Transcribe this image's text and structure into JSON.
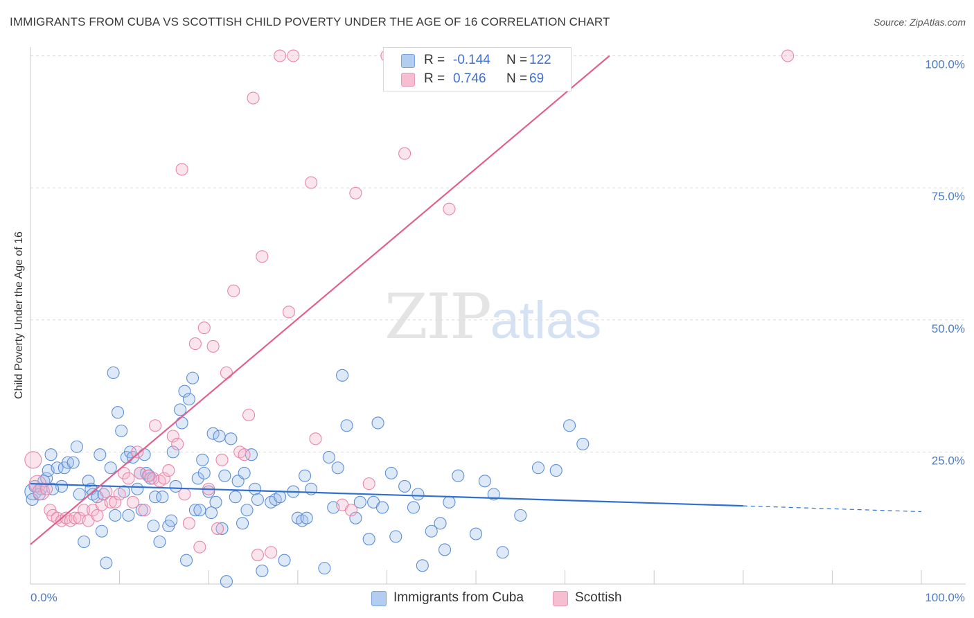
{
  "title": "IMMIGRANTS FROM CUBA VS SCOTTISH CHILD POVERTY UNDER THE AGE OF 16 CORRELATION CHART",
  "source": "Source: ZipAtlas.com",
  "watermark": {
    "zip": "ZIP",
    "atlas": "atlas"
  },
  "colors": {
    "blue": "#4a86d8",
    "blue_fill": "#b3cdf0",
    "pink": "#e8739a",
    "pink_fill": "#f6bfd1",
    "tick": "#4a7cc9"
  },
  "legend": {
    "r_label": "R =",
    "n_label": "N =",
    "rows": [
      {
        "name": "Immigrants from Cuba",
        "r": "-0.144",
        "n": "122"
      },
      {
        "name": "Scottish",
        "r": "0.746",
        "n": "69"
      }
    ]
  },
  "chart_data": {
    "type": "scatter",
    "title": "IMMIGRANTS FROM CUBA VS SCOTTISH CHILD POVERTY UNDER THE AGE OF 16 CORRELATION CHART",
    "xlabel": "",
    "ylabel": "Child Poverty Under the Age of 16",
    "xlim": [
      0,
      100
    ],
    "ylim": [
      0,
      100
    ],
    "x_tick_labels": [
      "0.0%",
      "100.0%"
    ],
    "y_tick_labels": [
      "25.0%",
      "50.0%",
      "75.0%",
      "100.0%"
    ],
    "y_ticks": [
      25,
      50,
      75,
      100
    ],
    "grid": true,
    "legend_position": "top-center",
    "series": [
      {
        "name": "Immigrants from Cuba",
        "color": "#4a86d8",
        "trend": {
          "x": [
            0,
            80
          ],
          "y": [
            19.0,
            14.8
          ],
          "dashed_to": [
            100,
            13.7
          ]
        },
        "points": [
          [
            0.3,
            17.5
          ],
          [
            0.5,
            18.5
          ],
          [
            1.2,
            18.0
          ],
          [
            1.5,
            19.5
          ],
          [
            1.8,
            20.0
          ],
          [
            2.0,
            21.5
          ],
          [
            2.3,
            24.5
          ],
          [
            3.0,
            22.0
          ],
          [
            3.5,
            18.5
          ],
          [
            3.8,
            22.0
          ],
          [
            4.2,
            23.0
          ],
          [
            4.8,
            23.0
          ],
          [
            5.2,
            26.0
          ],
          [
            5.5,
            17.0
          ],
          [
            6.0,
            8.0
          ],
          [
            6.5,
            19.5
          ],
          [
            6.8,
            18.0
          ],
          [
            7.0,
            17.0
          ],
          [
            7.5,
            16.5
          ],
          [
            7.8,
            24.5
          ],
          [
            8.0,
            10.0
          ],
          [
            8.2,
            17.0
          ],
          [
            8.5,
            4.0
          ],
          [
            9.0,
            22.0
          ],
          [
            9.3,
            40.0
          ],
          [
            9.5,
            13.0
          ],
          [
            9.8,
            32.5
          ],
          [
            10.2,
            29.0
          ],
          [
            10.5,
            17.5
          ],
          [
            10.8,
            24.0
          ],
          [
            11.0,
            13.0
          ],
          [
            11.2,
            25.0
          ],
          [
            11.5,
            24.0
          ],
          [
            12.0,
            18.0
          ],
          [
            12.3,
            21.0
          ],
          [
            12.5,
            14.0
          ],
          [
            12.8,
            24.5
          ],
          [
            13.0,
            21.0
          ],
          [
            13.3,
            20.5
          ],
          [
            13.5,
            20.0
          ],
          [
            13.8,
            11.0
          ],
          [
            14.0,
            16.5
          ],
          [
            14.5,
            8.0
          ],
          [
            14.8,
            16.5
          ],
          [
            15.5,
            11.0
          ],
          [
            15.8,
            12.0
          ],
          [
            16.0,
            25.0
          ],
          [
            16.3,
            18.5
          ],
          [
            16.8,
            33.0
          ],
          [
            17.0,
            30.5
          ],
          [
            17.3,
            36.5
          ],
          [
            17.5,
            4.5
          ],
          [
            17.8,
            35.0
          ],
          [
            18.2,
            39.0
          ],
          [
            18.5,
            14.0
          ],
          [
            18.8,
            20.0
          ],
          [
            19.0,
            14.0
          ],
          [
            19.3,
            23.5
          ],
          [
            19.5,
            21.0
          ],
          [
            20.0,
            17.5
          ],
          [
            20.3,
            13.5
          ],
          [
            20.5,
            28.5
          ],
          [
            20.8,
            15.5
          ],
          [
            21.2,
            28.0
          ],
          [
            21.5,
            10.5
          ],
          [
            21.8,
            20.5
          ],
          [
            22.0,
            0.5
          ],
          [
            22.5,
            27.5
          ],
          [
            23.0,
            16.5
          ],
          [
            23.3,
            19.5
          ],
          [
            23.8,
            11.5
          ],
          [
            24.0,
            21.0
          ],
          [
            24.3,
            14.0
          ],
          [
            24.8,
            24.5
          ],
          [
            25.2,
            18.0
          ],
          [
            25.5,
            16.0
          ],
          [
            26.0,
            2.5
          ],
          [
            27.0,
            15.5
          ],
          [
            27.5,
            16.0
          ],
          [
            28.0,
            16.5
          ],
          [
            28.5,
            4.5
          ],
          [
            29.5,
            17.5
          ],
          [
            30.0,
            12.5
          ],
          [
            30.5,
            12.0
          ],
          [
            30.8,
            20.5
          ],
          [
            31.0,
            12.5
          ],
          [
            31.5,
            18.0
          ],
          [
            33.0,
            3.0
          ],
          [
            33.5,
            24.0
          ],
          [
            34.0,
            14.5
          ],
          [
            34.5,
            22.0
          ],
          [
            35.0,
            39.5
          ],
          [
            35.5,
            30.0
          ],
          [
            36.5,
            12.5
          ],
          [
            37.0,
            15.5
          ],
          [
            38.0,
            8.5
          ],
          [
            38.5,
            15.5
          ],
          [
            39.0,
            30.5
          ],
          [
            39.5,
            14.5
          ],
          [
            40.5,
            21.0
          ],
          [
            41.0,
            9.0
          ],
          [
            42.0,
            18.5
          ],
          [
            43.0,
            14.5
          ],
          [
            43.5,
            17.0
          ],
          [
            44.0,
            3.5
          ],
          [
            45.0,
            10.0
          ],
          [
            46.0,
            11.5
          ],
          [
            46.5,
            6.5
          ],
          [
            47.0,
            15.5
          ],
          [
            48.0,
            20.5
          ],
          [
            50.0,
            9.5
          ],
          [
            51.0,
            19.5
          ],
          [
            52.0,
            17.0
          ],
          [
            53.0,
            6.0
          ],
          [
            55.0,
            13.0
          ],
          [
            57.0,
            22.0
          ],
          [
            59.0,
            21.5
          ],
          [
            60.5,
            30.0
          ],
          [
            62.0,
            26.5
          ],
          [
            0.2,
            16.0
          ],
          [
            1.0,
            17.0
          ],
          [
            2.5,
            18.0
          ]
        ]
      },
      {
        "name": "Scottish",
        "color": "#e8739a",
        "trend": {
          "x": [
            0,
            65
          ],
          "y": [
            7.5,
            100
          ]
        },
        "points": [
          [
            0.3,
            23.5
          ],
          [
            0.8,
            19.0
          ],
          [
            1.2,
            17.5
          ],
          [
            1.8,
            18.0
          ],
          [
            2.2,
            14.0
          ],
          [
            2.5,
            13.0
          ],
          [
            3.0,
            12.5
          ],
          [
            3.5,
            12.0
          ],
          [
            4.0,
            12.5
          ],
          [
            4.5,
            12.0
          ],
          [
            5.0,
            12.5
          ],
          [
            5.5,
            12.5
          ],
          [
            6.0,
            14.0
          ],
          [
            6.5,
            12.0
          ],
          [
            7.0,
            14.0
          ],
          [
            7.5,
            13.0
          ],
          [
            8.0,
            15.0
          ],
          [
            8.5,
            17.5
          ],
          [
            9.0,
            15.5
          ],
          [
            9.5,
            15.5
          ],
          [
            10.0,
            17.0
          ],
          [
            10.5,
            21.0
          ],
          [
            11.0,
            20.0
          ],
          [
            11.5,
            15.5
          ],
          [
            12.0,
            25.0
          ],
          [
            12.3,
            21.0
          ],
          [
            12.8,
            14.0
          ],
          [
            13.2,
            20.5
          ],
          [
            13.8,
            20.0
          ],
          [
            14.0,
            30.0
          ],
          [
            14.5,
            19.5
          ],
          [
            15.0,
            20.0
          ],
          [
            15.5,
            21.5
          ],
          [
            16.0,
            28.0
          ],
          [
            16.5,
            26.5
          ],
          [
            17.0,
            78.5
          ],
          [
            17.3,
            17.0
          ],
          [
            17.8,
            11.5
          ],
          [
            18.5,
            45.5
          ],
          [
            19.0,
            7.0
          ],
          [
            19.5,
            48.5
          ],
          [
            20.0,
            18.0
          ],
          [
            20.5,
            45.0
          ],
          [
            21.0,
            10.5
          ],
          [
            21.5,
            23.5
          ],
          [
            22.0,
            40.0
          ],
          [
            22.8,
            55.5
          ],
          [
            23.5,
            25.0
          ],
          [
            24.0,
            24.5
          ],
          [
            24.5,
            32.0
          ],
          [
            25.0,
            92.0
          ],
          [
            25.5,
            5.5
          ],
          [
            26.0,
            62.0
          ],
          [
            27.0,
            6.0
          ],
          [
            28.0,
            100.0
          ],
          [
            29.0,
            51.5
          ],
          [
            29.5,
            100.0
          ],
          [
            31.5,
            76.0
          ],
          [
            32.0,
            27.5
          ],
          [
            35.0,
            15.0
          ],
          [
            36.0,
            14.0
          ],
          [
            36.5,
            74.0
          ],
          [
            38.0,
            19.0
          ],
          [
            40.0,
            100.0
          ],
          [
            42.0,
            81.5
          ],
          [
            44.0,
            100.0
          ],
          [
            47.0,
            71.0
          ],
          [
            57.0,
            100.0
          ],
          [
            85.0,
            100.0
          ]
        ]
      }
    ]
  }
}
